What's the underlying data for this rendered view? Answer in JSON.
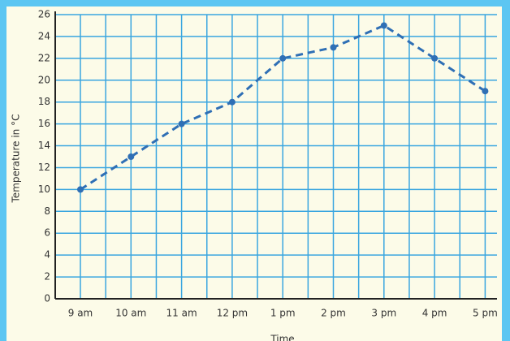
{
  "chart_data": {
    "type": "line",
    "x_label": "Time",
    "y_label": "Temperature in °C",
    "categories": [
      "9 am",
      "10 am",
      "11 am",
      "12 pm",
      "1 pm",
      "2 pm",
      "3 pm",
      "4 pm",
      "5 pm"
    ],
    "series": [
      {
        "name": "Temperature",
        "color": "#2f6fb5",
        "values": [
          10,
          13,
          16,
          18,
          22,
          23,
          25,
          22,
          19
        ]
      }
    ],
    "ylim": [
      0,
      26
    ],
    "yticks": [
      0,
      2,
      4,
      6,
      8,
      10,
      12,
      14,
      16,
      18,
      20,
      22,
      24,
      26
    ],
    "grid": true
  }
}
